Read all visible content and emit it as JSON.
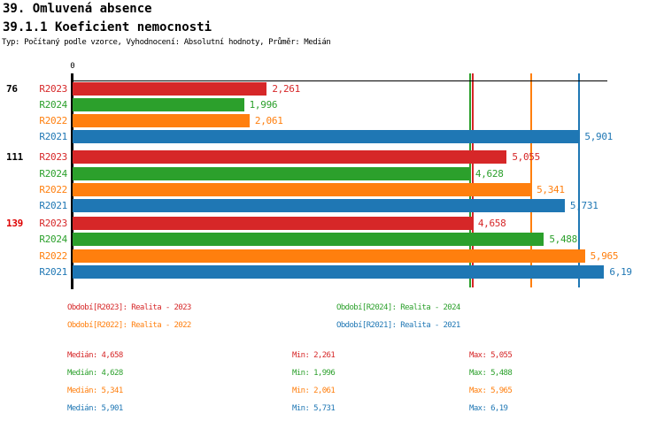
{
  "header": {
    "title1": "39. Omluvená absence",
    "title2": "39.1.1 Koeficient nemocnosti",
    "subtitle": "Typ: Počítaný podle vzorce, Vyhodnocení: Absolutní hodnoty, Průměr: Medián"
  },
  "chart_data": {
    "type": "bar",
    "orientation": "horizontal",
    "x_axis": {
      "zero_label": "0",
      "xlim": [
        0,
        6.24
      ]
    },
    "average_type": "Medián",
    "series_colors": {
      "R2023": "#d62728",
      "R2024": "#2ca02c",
      "R2022": "#ff7f0e",
      "R2021": "#1f77b4"
    },
    "groups": [
      {
        "label": "76",
        "label_color": "#000000",
        "bars": [
          {
            "series": "R2023",
            "value": 2.261,
            "label": "2,261"
          },
          {
            "series": "R2024",
            "value": 1.996,
            "label": "1,996"
          },
          {
            "series": "R2022",
            "value": 2.061,
            "label": "2,061"
          },
          {
            "series": "R2021",
            "value": 5.901,
            "label": "5,901"
          }
        ]
      },
      {
        "label": "111",
        "label_color": "#000000",
        "bars": [
          {
            "series": "R2023",
            "value": 5.055,
            "label": "5,055"
          },
          {
            "series": "R2024",
            "value": 4.628,
            "label": "4,628"
          },
          {
            "series": "R2022",
            "value": 5.341,
            "label": "5,341"
          },
          {
            "series": "R2021",
            "value": 5.731,
            "label": "5,731"
          }
        ]
      },
      {
        "label": "139",
        "label_color": "#dd0000",
        "bars": [
          {
            "series": "R2023",
            "value": 4.658,
            "label": "4,658"
          },
          {
            "series": "R2024",
            "value": 5.488,
            "label": "5,488"
          },
          {
            "series": "R2022",
            "value": 5.965,
            "label": "5,965"
          },
          {
            "series": "R2021",
            "value": 6.19,
            "label": "6,19"
          }
        ]
      }
    ],
    "median_lines": [
      {
        "series": "R2023",
        "value": 4.658,
        "color": "#d62728"
      },
      {
        "series": "R2024",
        "value": 4.628,
        "color": "#2ca02c"
      },
      {
        "series": "R2022",
        "value": 5.341,
        "color": "#ff7f0e"
      },
      {
        "series": "R2021",
        "value": 5.901,
        "color": "#1f77b4"
      }
    ]
  },
  "legend": {
    "items": [
      {
        "series": "R2023",
        "label": "Období[R2023]: Realita - 2023",
        "color": "#d62728"
      },
      {
        "series": "R2024",
        "label": "Období[R2024]: Realita - 2024",
        "color": "#2ca02c"
      },
      {
        "series": "R2022",
        "label": "Období[R2022]: Realita - 2022",
        "color": "#ff7f0e"
      },
      {
        "series": "R2021",
        "label": "Období[R2021]: Realita - 2021",
        "color": "#1f77b4"
      }
    ]
  },
  "stats": {
    "rows": [
      {
        "series": "R2023",
        "color": "#d62728",
        "median_label": "Medián",
        "median": "4,658",
        "min_label": "Min",
        "min": "2,261",
        "max_label": "Max",
        "max": "5,055"
      },
      {
        "series": "R2024",
        "color": "#2ca02c",
        "median_label": "Medián",
        "median": "4,628",
        "min_label": "Min",
        "min": "1,996",
        "max_label": "Max",
        "max": "5,488"
      },
      {
        "series": "R2022",
        "color": "#ff7f0e",
        "median_label": "Medián",
        "median": "5,341",
        "min_label": "Min",
        "min": "2,061",
        "max_label": "Max",
        "max": "5,965"
      },
      {
        "series": "R2021",
        "color": "#1f77b4",
        "median_label": "Medián",
        "median": "5,901",
        "min_label": "Min",
        "min": "5,731",
        "max_label": "Max",
        "max": "6,19"
      }
    ]
  }
}
